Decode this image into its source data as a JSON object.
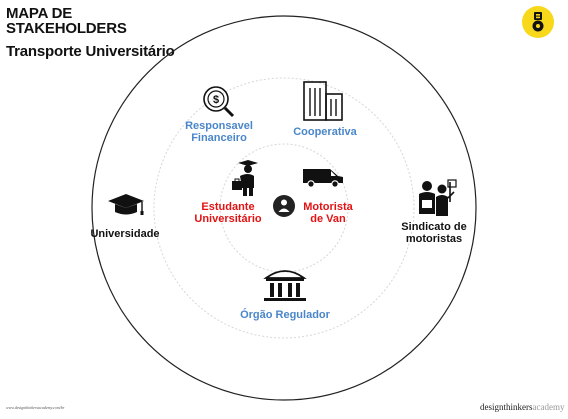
{
  "header": {
    "title": "MAPA DE\nSTAKEHOLDERS",
    "subtitle": "Transporte Universitário"
  },
  "center_icon": "user-circle-icon",
  "stakeholders": {
    "responsavel": {
      "label": "Responsavel\nFinanceiro",
      "icon": "dollar-magnifier-icon",
      "color": "#4a86c8"
    },
    "cooperativa": {
      "label": "Cooperativa",
      "icon": "building-icon",
      "color": "#4a86c8"
    },
    "estudante": {
      "label": "Estudante\nUniversitário",
      "icon": "graduate-student-icon",
      "color": "#e31313"
    },
    "motorista": {
      "label": "Motorista\nde Van",
      "icon": "van-icon",
      "color": "#e31313"
    },
    "universidade": {
      "label": "Universidade",
      "icon": "graduation-cap-icon",
      "color": "#111111"
    },
    "sindicato": {
      "label": "Sindicato de\nmotoristas",
      "icon": "protesters-icon",
      "color": "#111111"
    },
    "orgao": {
      "label": "Órgão Regulador",
      "icon": "government-building-icon",
      "color": "#4a86c8"
    }
  },
  "footer": {
    "url": "www.designthinkersacademy.com/br",
    "brand_dark": "designthinkers",
    "brand_light": "academy"
  },
  "colors": {
    "accent_yellow": "#f7d81b",
    "blue": "#4a86c8",
    "red": "#e31313"
  }
}
